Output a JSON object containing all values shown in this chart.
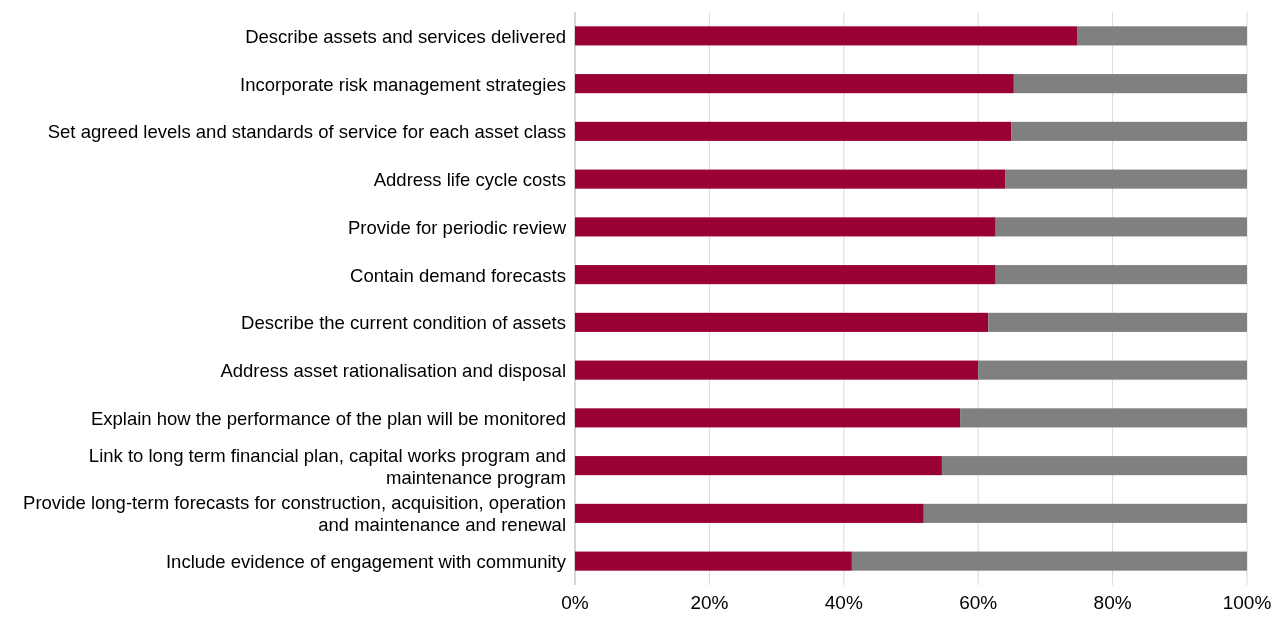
{
  "chart_data": {
    "type": "bar",
    "orientation": "horizontal",
    "stacked": true,
    "categories": [
      "Describe assets and services delivered",
      "Incorporate risk management strategies",
      "Set agreed levels and standards of service for each asset class",
      "Address life cycle costs",
      "Provide for periodic review",
      "Contain demand forecasts",
      "Describe the current condition of assets",
      "Address asset rationalisation and disposal",
      "Explain how the performance of the plan will be monitored",
      "Link to long term financial plan, capital works program and maintenance program",
      "Provide long-term forecasts for construction, acquisition, operation and maintenance and renewal",
      "Include evidence of engagement with community"
    ],
    "series": [
      {
        "color": "#990033",
        "values": [
          74.7,
          65.3,
          64.9,
          64.0,
          62.6,
          62.6,
          61.5,
          60.0,
          57.3,
          54.6,
          51.9,
          41.2
        ]
      },
      {
        "color": "#808080",
        "values": [
          25.3,
          34.7,
          35.1,
          36.0,
          37.4,
          37.4,
          38.5,
          40.0,
          42.7,
          45.4,
          48.1,
          58.8
        ]
      }
    ],
    "xlim": [
      0,
      100
    ],
    "xticks": [
      {
        "value": 0,
        "label": "0%"
      },
      {
        "value": 20,
        "label": "20%"
      },
      {
        "value": 40,
        "label": "40%"
      },
      {
        "value": 60,
        "label": "60%"
      },
      {
        "value": 80,
        "label": "80%"
      },
      {
        "value": 100,
        "label": "100%"
      }
    ],
    "grid": "x"
  }
}
